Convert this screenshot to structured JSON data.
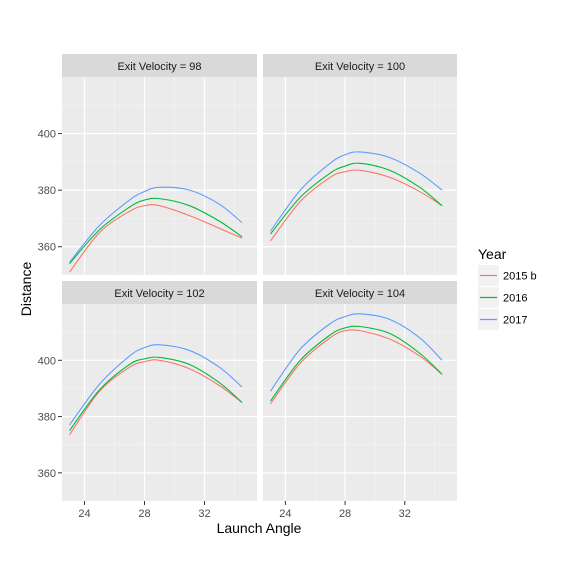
{
  "chart_data": {
    "type": "line",
    "xlabel": "Launch Angle",
    "ylabel": "Distance",
    "xlim": [
      22.5,
      35.5
    ],
    "x_ticks": [
      24,
      28,
      32
    ],
    "x_tick_labels": [
      "24",
      "28",
      "32"
    ],
    "legend": {
      "title": "Year",
      "placement": "right",
      "entries": [
        "2015 b",
        "2016",
        "2017"
      ]
    },
    "series_colors": {
      "2015 b": "#F8766D",
      "2016": "#00BA38",
      "2017": "#619CFF"
    },
    "background": "#EBEBEB",
    "strip_fill": "#D9D9D9",
    "grid": true,
    "rows": [
      {
        "ylim": [
          350,
          420
        ],
        "y_ticks": [
          360,
          380,
          400
        ],
        "y_tick_labels": [
          "360",
          "380",
          "400"
        ],
        "panels": [
          {
            "strip": "Exit Velocity = 98",
            "series": [
              {
                "name": "2015 b",
                "x": [
                  23,
                  25,
                  27,
                  28,
                  29,
                  31,
                  33,
                  34.5
                ],
                "y": [
                  351,
                  365,
                  372.5,
                  374.5,
                  374.5,
                  371,
                  366.5,
                  363
                ]
              },
              {
                "name": "2016",
                "x": [
                  23,
                  25,
                  27,
                  28,
                  29,
                  31,
                  33,
                  34.5
                ],
                "y": [
                  354,
                  366,
                  374,
                  376.5,
                  377,
                  374.5,
                  369,
                  363.5
                ]
              },
              {
                "name": "2017",
                "x": [
                  23,
                  25,
                  27,
                  28,
                  29,
                  31,
                  33,
                  34.5
                ],
                "y": [
                  354.5,
                  367.5,
                  376.5,
                  379.5,
                  381,
                  380,
                  375,
                  368.5
                ]
              }
            ]
          },
          {
            "strip": "Exit Velocity = 100",
            "series": [
              {
                "name": "2015 b",
                "x": [
                  23,
                  25,
                  27,
                  28,
                  29,
                  31,
                  33,
                  34.5
                ],
                "y": [
                  362,
                  376,
                  384.5,
                  386.5,
                  387,
                  384.5,
                  379.5,
                  374.5
                ]
              },
              {
                "name": "2016",
                "x": [
                  23,
                  25,
                  27,
                  28,
                  29,
                  31,
                  33,
                  34.5
                ],
                "y": [
                  364.5,
                  377.5,
                  386,
                  388.5,
                  389.5,
                  387,
                  381,
                  374.5
                ]
              },
              {
                "name": "2017",
                "x": [
                  23,
                  25,
                  27,
                  28,
                  29,
                  31,
                  33,
                  34.5
                ],
                "y": [
                  365.5,
                  380,
                  389.5,
                  392.5,
                  393.5,
                  391.5,
                  386,
                  380
                ]
              }
            ]
          }
        ]
      },
      {
        "ylim": [
          350,
          420
        ],
        "y_ticks": [
          360,
          380,
          400
        ],
        "y_tick_labels": [
          "360",
          "380",
          "400"
        ],
        "panels": [
          {
            "strip": "Exit Velocity = 102",
            "series": [
              {
                "name": "2015 b",
                "x": [
                  23,
                  25,
                  27,
                  28,
                  29,
                  31,
                  33,
                  34.5
                ],
                "y": [
                  373.5,
                  389,
                  397.5,
                  399.5,
                  400,
                  397,
                  391,
                  385
                ]
              },
              {
                "name": "2016",
                "x": [
                  23,
                  25,
                  27,
                  28,
                  29,
                  31,
                  33,
                  34.5
                ],
                "y": [
                  375,
                  389.5,
                  398.5,
                  400.5,
                  401,
                  398.5,
                  392,
                  385
                ]
              },
              {
                "name": "2017",
                "x": [
                  23,
                  25,
                  27,
                  28,
                  29,
                  31,
                  33,
                  34.5
                ],
                "y": [
                  377,
                  391.5,
                  401.5,
                  404.5,
                  405.5,
                  403.5,
                  397.5,
                  390.5
                ]
              }
            ]
          },
          {
            "strip": "Exit Velocity = 104",
            "series": [
              {
                "name": "2015 b",
                "x": [
                  23,
                  25,
                  27,
                  28,
                  29,
                  31,
                  33,
                  34.5
                ],
                "y": [
                  384.5,
                  399,
                  408,
                  410.5,
                  410.5,
                  407.5,
                  401.5,
                  395
                ]
              },
              {
                "name": "2016",
                "x": [
                  23,
                  25,
                  27,
                  28,
                  29,
                  31,
                  33,
                  34.5
                ],
                "y": [
                  385.5,
                  400,
                  409,
                  411.5,
                  412,
                  409.5,
                  402.5,
                  395
                ]
              },
              {
                "name": "2017",
                "x": [
                  23,
                  25,
                  27,
                  28,
                  29,
                  31,
                  33,
                  34.5
                ],
                "y": [
                  389,
                  404,
                  413,
                  415.5,
                  416.5,
                  414.5,
                  408,
                  400
                ]
              }
            ]
          }
        ]
      }
    ]
  }
}
